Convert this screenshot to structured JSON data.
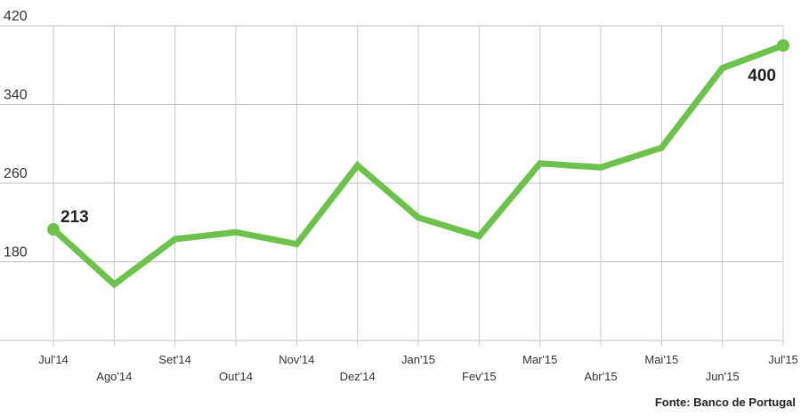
{
  "chart_data": {
    "type": "line",
    "categories": [
      "Jul'14",
      "Ago'14",
      "Set'14",
      "Out'14",
      "Nov'14",
      "Dez'14",
      "Jan'15",
      "Fev'15",
      "Mar'15",
      "Abr'15",
      "Mai'15",
      "Jun'15",
      "Jul'15"
    ],
    "values": [
      213,
      157,
      203,
      210,
      198,
      278,
      225,
      206,
      280,
      276,
      296,
      377,
      400
    ],
    "ylim": [
      100,
      420
    ],
    "yticks": [
      180,
      260,
      340,
      420
    ],
    "grid": true,
    "line_color": "#6cc24a",
    "annotations": [
      {
        "index": 0,
        "text": "213"
      },
      {
        "index": 12,
        "text": "400"
      }
    ]
  },
  "source": "Fonte: Banco de Portugal"
}
